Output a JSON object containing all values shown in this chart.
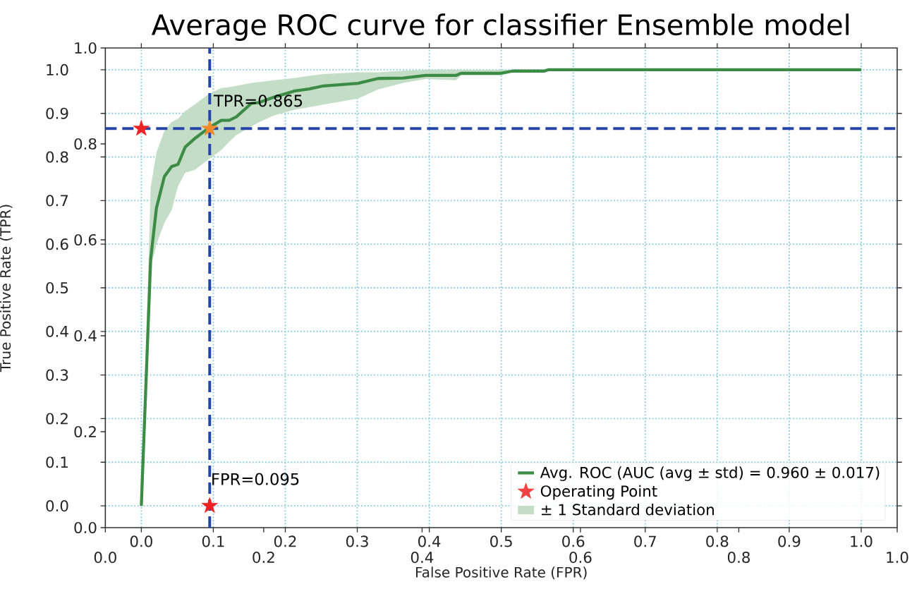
{
  "chart_data": {
    "type": "line",
    "title": "Average ROC curve for classifier Ensemble model",
    "xlabel": "False Positive Rate (FPR)",
    "ylabel": "True Positive Rate (TPR)",
    "xlim": [
      -0.05,
      1.05
    ],
    "ylim": [
      -0.05,
      1.05
    ],
    "xticks": [
      {
        "value": 0,
        "label": "0.0"
      },
      {
        "value": 0.1,
        "label": "0.1"
      },
      {
        "value": 0.2,
        "label": "0.2"
      },
      {
        "value": 0.3,
        "label": "0.3"
      },
      {
        "value": 0.4,
        "label": "0.4"
      },
      {
        "value": 0.5,
        "label": "0.5"
      },
      {
        "value": 0.6,
        "label": "0.6"
      },
      {
        "value": 0.7,
        "label": "0.7"
      },
      {
        "value": 0.8,
        "label": "0.8"
      },
      {
        "value": 0.9,
        "label": "0.9"
      },
      {
        "value": 1,
        "label": "1.0"
      }
    ],
    "yticks": [
      {
        "value": 0,
        "label": "0.0"
      },
      {
        "value": 0.1,
        "label": "0.1"
      },
      {
        "value": 0.2,
        "label": "0.2"
      },
      {
        "value": 0.3,
        "label": "0.3"
      },
      {
        "value": 0.4,
        "label": "0.4"
      },
      {
        "value": 0.5,
        "label": "0.5"
      },
      {
        "value": 0.6,
        "label": "0.6"
      },
      {
        "value": 0.7,
        "label": "0.7"
      },
      {
        "value": 0.8,
        "label": "0.8"
      },
      {
        "value": 0.9,
        "label": "0.9"
      },
      {
        "value": 1,
        "label": "1.0"
      }
    ],
    "x2lim": [
      0,
      1
    ],
    "y2lim": [
      0,
      1
    ],
    "x2ticks": [
      {
        "value": 0,
        "label": "0.0"
      },
      {
        "value": 0.2,
        "label": "0.2"
      },
      {
        "value": 0.4,
        "label": "0.4"
      },
      {
        "value": 0.6,
        "label": "0.6"
      },
      {
        "value": 0.8,
        "label": "0.8"
      },
      {
        "value": 1,
        "label": "1.0"
      }
    ],
    "y2ticks": [
      {
        "value": 0,
        "label": "0.0"
      },
      {
        "value": 0.2,
        "label": "0.2"
      },
      {
        "value": 0.4,
        "label": "0.4"
      },
      {
        "value": 0.6,
        "label": "0.6"
      },
      {
        "value": 0.8,
        "label": "0.8"
      },
      {
        "value": 1,
        "label": "1.0"
      }
    ],
    "grid": true,
    "legend": "bottom right",
    "series": [
      {
        "name": "Avg. ROC (AUC (avg ± std) = 0.960 ± 0.017)",
        "color": "#3c8c46",
        "x": [
          0,
          0.013,
          0.021,
          0.032,
          0.042,
          0.051,
          0.061,
          0.074,
          0.094,
          0.111,
          0.122,
          0.132,
          0.153,
          0.164,
          0.184,
          0.212,
          0.233,
          0.253,
          0.301,
          0.329,
          0.364,
          0.395,
          0.437,
          0.444,
          0.499,
          0.516,
          0.56,
          0.565,
          1.0
        ],
        "values": [
          0,
          0.566,
          0.683,
          0.755,
          0.778,
          0.783,
          0.823,
          0.842,
          0.867,
          0.884,
          0.884,
          0.892,
          0.923,
          0.925,
          0.937,
          0.951,
          0.956,
          0.963,
          0.969,
          0.98,
          0.981,
          0.987,
          0.987,
          0.992,
          0.992,
          0.997,
          0.997,
          1.0,
          1.0
        ],
        "lower": [
          0,
          0.545,
          0.6,
          0.649,
          0.678,
          0.733,
          0.764,
          0.77,
          0.795,
          0.816,
          0.835,
          0.85,
          0.87,
          0.88,
          0.895,
          0.908,
          0.914,
          0.92,
          0.934,
          0.955,
          0.97,
          0.979,
          0.976,
          0.987,
          0.987,
          0.995,
          0.995,
          1,
          1
        ],
        "upper": [
          0,
          0.73,
          0.81,
          0.86,
          0.88,
          0.888,
          0.905,
          0.92,
          0.945,
          0.958,
          0.96,
          0.963,
          0.97,
          0.972,
          0.976,
          0.981,
          0.986,
          0.99,
          0.994,
          0.994,
          0.998,
          1,
          1,
          1,
          1,
          1,
          1,
          1,
          1
        ]
      },
      {
        "name": "Operating Point",
        "type": "scatter",
        "marker": "star",
        "color": "#ee2222",
        "x": [
          0,
          0.095
        ],
        "values": [
          0.865,
          0
        ]
      },
      {
        "type": "scatter",
        "marker": "star",
        "color": "#f08a2a",
        "x": [
          0.095
        ],
        "values": [
          0.865
        ]
      }
    ],
    "ref_lines": [
      {
        "axis": "x",
        "value": 0.095,
        "color": "#2444a8",
        "line_style": "dashed",
        "label": "FPR=0.095"
      },
      {
        "axis": "y",
        "value": 0.865,
        "color": "#2444a8",
        "line_style": "dashed",
        "label": "TPR=0.865"
      }
    ],
    "annotations": [
      "± 1 Standard deviation"
    ]
  }
}
